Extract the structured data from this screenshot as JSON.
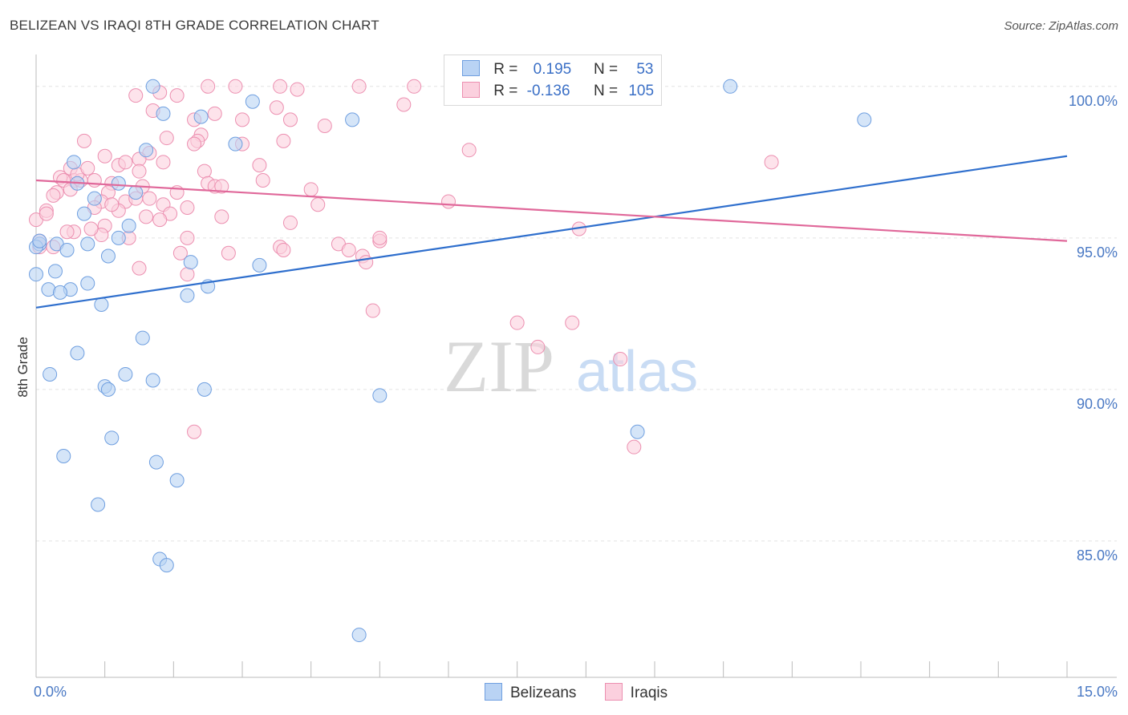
{
  "title": "BELIZEAN VS IRAQI 8TH GRADE CORRELATION CHART",
  "source": "Source: ZipAtlas.com",
  "watermark": {
    "zip": "ZIP",
    "atlas": "atlas"
  },
  "legend": {
    "rows": [
      {
        "r_label": "R =",
        "r_value": "0.195",
        "n_label": "N =",
        "n_value": "53",
        "color": "#9ec0ee",
        "border": "#6f9fe0"
      },
      {
        "r_label": "R =",
        "r_value": "-0.136",
        "n_label": "N =",
        "n_value": "105",
        "color": "#f7bcd0",
        "border": "#ec8fb0"
      }
    ]
  },
  "bottom_legend": [
    {
      "label": "Belizeans",
      "color": "#b9d3f4",
      "border": "#6f9fe0"
    },
    {
      "label": "Iraqis",
      "color": "#fbd0de",
      "border": "#ec8fb0"
    }
  ],
  "chart_data": {
    "type": "scatter",
    "title": "BELIZEAN VS IRAQI 8TH GRADE CORRELATION CHART",
    "xlabel": "",
    "ylabel": "8th Grade",
    "xlim": [
      0,
      15
    ],
    "ylim": [
      80.5,
      101
    ],
    "x_tick_labels": [
      "0.0%",
      "15.0%"
    ],
    "y_ticks": [
      85,
      90,
      95,
      100
    ],
    "y_tick_labels": [
      "85.0%",
      "90.0%",
      "95.0%",
      "100.0%"
    ],
    "series": [
      {
        "name": "Belizeans",
        "color": "#6f9fe0",
        "fill": "#b9d3f4",
        "trend": {
          "x": [
            0,
            15
          ],
          "y": [
            92.7,
            97.7
          ],
          "color": "#2f6fcd"
        },
        "points": [
          [
            1.7,
            100.0
          ],
          [
            10.1,
            100.0
          ],
          [
            0.05,
            94.8
          ],
          [
            2.4,
            99.0
          ],
          [
            1.85,
            99.1
          ],
          [
            3.15,
            99.5
          ],
          [
            4.6,
            98.9
          ],
          [
            12.05,
            98.9
          ],
          [
            2.9,
            98.1
          ],
          [
            1.6,
            97.9
          ],
          [
            0.55,
            97.5
          ],
          [
            1.2,
            96.8
          ],
          [
            0.6,
            96.8
          ],
          [
            1.45,
            96.5
          ],
          [
            0.85,
            96.3
          ],
          [
            0.7,
            95.8
          ],
          [
            1.35,
            95.4
          ],
          [
            1.2,
            95.0
          ],
          [
            0.3,
            94.8
          ],
          [
            0.0,
            94.7
          ],
          [
            0.45,
            94.6
          ],
          [
            0.75,
            94.8
          ],
          [
            1.05,
            94.4
          ],
          [
            2.25,
            94.2
          ],
          [
            3.25,
            94.1
          ],
          [
            0.0,
            93.8
          ],
          [
            0.28,
            93.9
          ],
          [
            0.75,
            93.5
          ],
          [
            0.5,
            93.3
          ],
          [
            2.5,
            93.4
          ],
          [
            0.18,
            93.3
          ],
          [
            0.35,
            93.2
          ],
          [
            2.2,
            93.1
          ],
          [
            0.95,
            92.8
          ],
          [
            1.55,
            91.7
          ],
          [
            0.6,
            91.2
          ],
          [
            0.2,
            90.5
          ],
          [
            1.3,
            90.5
          ],
          [
            1.7,
            90.3
          ],
          [
            1.0,
            90.1
          ],
          [
            1.05,
            90.0
          ],
          [
            2.45,
            90.0
          ],
          [
            5.0,
            89.8
          ],
          [
            1.1,
            88.4
          ],
          [
            8.75,
            88.6
          ],
          [
            0.4,
            87.8
          ],
          [
            1.75,
            87.6
          ],
          [
            2.05,
            87.0
          ],
          [
            0.9,
            86.2
          ],
          [
            1.8,
            84.4
          ],
          [
            1.9,
            84.2
          ],
          [
            4.7,
            81.9
          ],
          [
            0.05,
            94.9
          ]
        ]
      },
      {
        "name": "Iraqis",
        "color": "#ec8fb0",
        "fill": "#fbd0de",
        "trend": {
          "x": [
            0,
            15
          ],
          "y": [
            96.9,
            94.9
          ],
          "color": "#e0689a"
        },
        "points": [
          [
            2.5,
            100.0
          ],
          [
            2.9,
            100.0
          ],
          [
            3.55,
            100.0
          ],
          [
            4.7,
            100.0
          ],
          [
            5.5,
            100.0
          ],
          [
            7.7,
            100.0
          ],
          [
            3.8,
            99.9
          ],
          [
            1.8,
            99.8
          ],
          [
            1.45,
            99.7
          ],
          [
            2.05,
            99.7
          ],
          [
            5.35,
            99.4
          ],
          [
            1.7,
            99.2
          ],
          [
            2.6,
            99.1
          ],
          [
            3.5,
            99.3
          ],
          [
            2.3,
            98.9
          ],
          [
            3.0,
            98.9
          ],
          [
            3.7,
            98.9
          ],
          [
            4.2,
            98.7
          ],
          [
            2.4,
            98.4
          ],
          [
            1.9,
            98.3
          ],
          [
            2.35,
            98.2
          ],
          [
            0.7,
            98.2
          ],
          [
            3.6,
            98.2
          ],
          [
            2.3,
            98.1
          ],
          [
            3.0,
            98.1
          ],
          [
            6.3,
            97.9
          ],
          [
            1.65,
            97.8
          ],
          [
            1.0,
            97.7
          ],
          [
            1.2,
            97.4
          ],
          [
            1.3,
            97.5
          ],
          [
            1.5,
            97.6
          ],
          [
            1.85,
            97.5
          ],
          [
            3.25,
            97.4
          ],
          [
            10.7,
            97.5
          ],
          [
            0.5,
            97.3
          ],
          [
            1.5,
            97.2
          ],
          [
            2.45,
            97.2
          ],
          [
            0.35,
            97.0
          ],
          [
            0.55,
            96.9
          ],
          [
            0.85,
            96.9
          ],
          [
            0.65,
            96.9
          ],
          [
            1.1,
            96.8
          ],
          [
            2.5,
            96.8
          ],
          [
            1.55,
            96.7
          ],
          [
            2.6,
            96.7
          ],
          [
            4.0,
            96.6
          ],
          [
            0.3,
            96.5
          ],
          [
            1.05,
            96.5
          ],
          [
            2.05,
            96.5
          ],
          [
            1.65,
            96.3
          ],
          [
            0.95,
            96.2
          ],
          [
            1.3,
            96.2
          ],
          [
            1.85,
            96.1
          ],
          [
            6.0,
            96.2
          ],
          [
            0.15,
            95.9
          ],
          [
            0.85,
            96.0
          ],
          [
            1.2,
            95.9
          ],
          [
            1.95,
            95.8
          ],
          [
            2.7,
            95.7
          ],
          [
            1.0,
            95.4
          ],
          [
            1.8,
            95.6
          ],
          [
            3.7,
            95.5
          ],
          [
            0.55,
            95.2
          ],
          [
            0.95,
            95.1
          ],
          [
            1.35,
            95.0
          ],
          [
            2.2,
            95.0
          ],
          [
            4.4,
            94.8
          ],
          [
            5.0,
            94.9
          ],
          [
            0.25,
            94.7
          ],
          [
            3.55,
            94.7
          ],
          [
            4.55,
            94.6
          ],
          [
            2.1,
            94.5
          ],
          [
            2.8,
            94.5
          ],
          [
            3.6,
            94.6
          ],
          [
            4.75,
            94.4
          ],
          [
            1.5,
            94.0
          ],
          [
            2.2,
            93.8
          ],
          [
            0.45,
            95.2
          ],
          [
            0.8,
            95.3
          ],
          [
            1.6,
            95.7
          ],
          [
            2.2,
            96.0
          ],
          [
            2.7,
            96.7
          ],
          [
            5.0,
            95.0
          ],
          [
            4.8,
            94.2
          ],
          [
            0.05,
            94.7
          ],
          [
            0.6,
            97.1
          ],
          [
            1.45,
            96.3
          ],
          [
            1.1,
            96.1
          ],
          [
            0.4,
            96.9
          ],
          [
            0.5,
            96.6
          ],
          [
            7.0,
            92.2
          ],
          [
            7.8,
            92.2
          ],
          [
            4.9,
            92.6
          ],
          [
            7.3,
            91.4
          ],
          [
            8.5,
            91.0
          ],
          [
            2.3,
            88.6
          ],
          [
            8.7,
            88.1
          ],
          [
            7.9,
            95.3
          ],
          [
            0.25,
            96.4
          ],
          [
            0.0,
            95.6
          ],
          [
            0.15,
            95.8
          ],
          [
            0.75,
            97.3
          ],
          [
            4.1,
            96.1
          ],
          [
            3.3,
            96.9
          ],
          [
            0.05,
            94.9
          ]
        ]
      }
    ]
  }
}
